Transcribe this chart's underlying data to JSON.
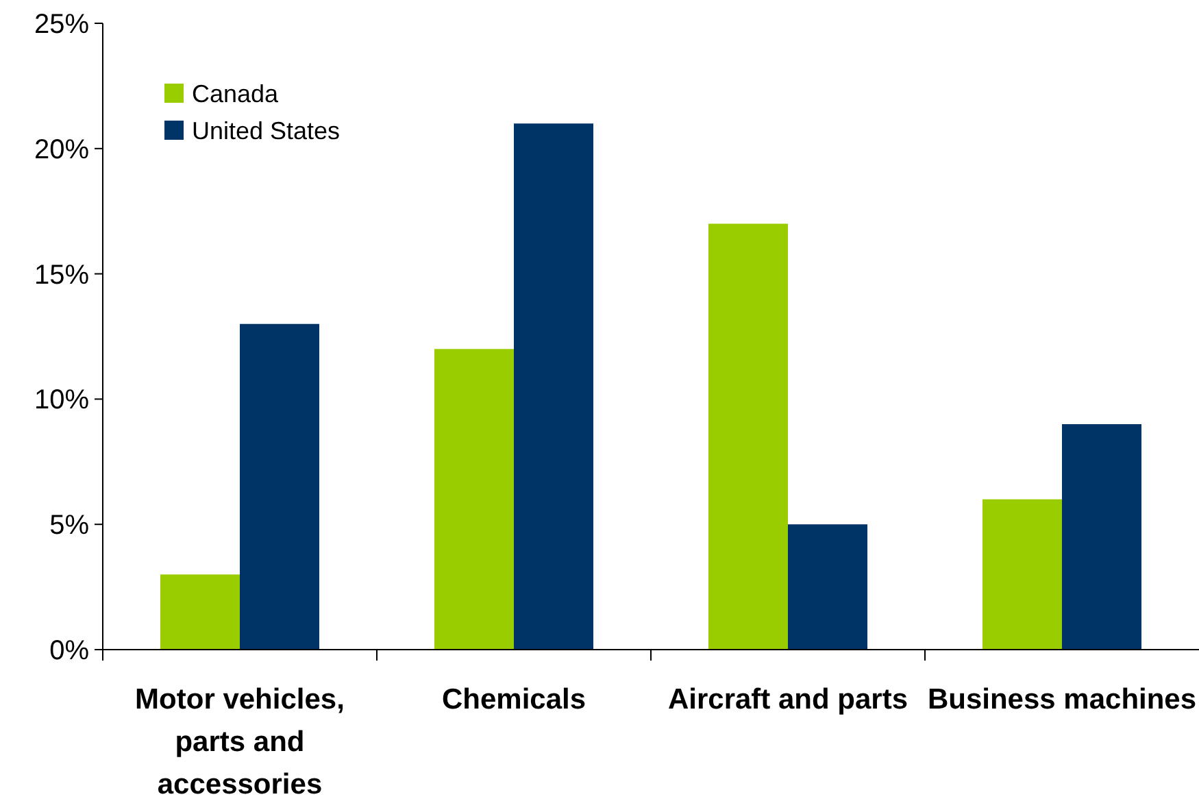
{
  "chart_data": {
    "type": "bar",
    "categories": [
      "Motor vehicles, parts and accessories",
      "Chemicals",
      "Aircraft and parts",
      "Business machines"
    ],
    "series": [
      {
        "name": "Canada",
        "color": "#9acd00",
        "values": [
          3,
          12,
          17,
          6
        ]
      },
      {
        "name": "United States",
        "color": "#003366",
        "values": [
          13,
          21,
          5,
          9
        ]
      }
    ],
    "ylim": [
      0,
      25
    ],
    "yticks": [
      {
        "value": 0,
        "label": "0%"
      },
      {
        "value": 5,
        "label": "5%"
      },
      {
        "value": 10,
        "label": "10%"
      },
      {
        "value": 15,
        "label": "15%"
      },
      {
        "value": 20,
        "label": "20%"
      },
      {
        "value": 25,
        "label": "25%"
      }
    ],
    "grid": false,
    "legend": "top left"
  }
}
